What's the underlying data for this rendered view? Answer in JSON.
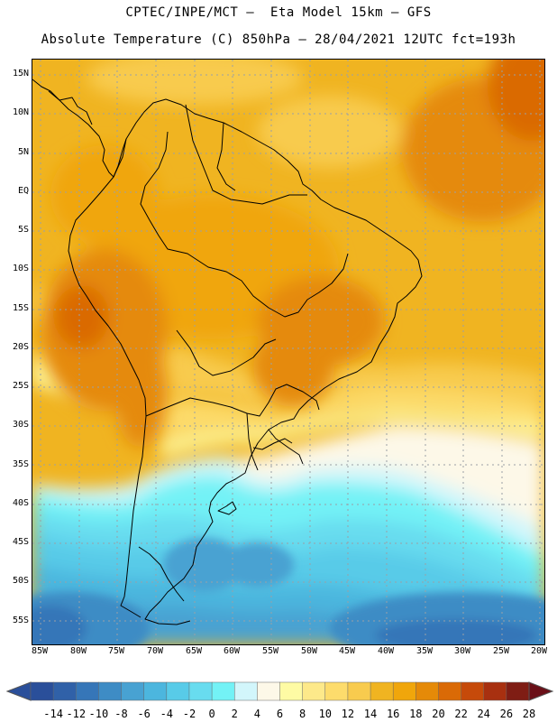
{
  "header": {
    "line1": "CPTEC/INPE/MCT —  Eta Model 15km — GFS",
    "line2": "Absolute Temperature (C) 850hPa — 28/04/2021 12UTC fct=193h"
  },
  "map": {
    "lat_labels": [
      "15N",
      "10N",
      "5N",
      "EQ",
      "5S",
      "10S",
      "15S",
      "20S",
      "25S",
      "30S",
      "35S",
      "40S",
      "45S",
      "50S",
      "55S"
    ],
    "lon_labels": [
      "85W",
      "80W",
      "75W",
      "70W",
      "65W",
      "60W",
      "55W",
      "50W",
      "45W",
      "40W",
      "35W",
      "30W",
      "25W",
      "20W"
    ],
    "field": "Absolute Temperature (C) at 850hPa"
  },
  "colorbar": {
    "labels": [
      "-14",
      "-12",
      "-10",
      "-8",
      "-6",
      "-4",
      "-2",
      "0",
      "2",
      "4",
      "6",
      "8",
      "10",
      "12",
      "14",
      "16",
      "18",
      "20",
      "22",
      "24",
      "26",
      "28"
    ],
    "colors": [
      "#2a4f9a",
      "#3061a8",
      "#3676b8",
      "#3e8cc5",
      "#48a2d2",
      "#4cb6de",
      "#58cbe8",
      "#68dcef",
      "#73f2f6",
      "#d2f6fb",
      "#fdf8e8",
      "#fefba4",
      "#fde98a",
      "#fddc6c",
      "#f8cb4e",
      "#f0b421",
      "#f0a60b",
      "#e58a08",
      "#da6a06",
      "#c64a0a",
      "#a83010",
      "#7f1d14"
    ]
  }
}
